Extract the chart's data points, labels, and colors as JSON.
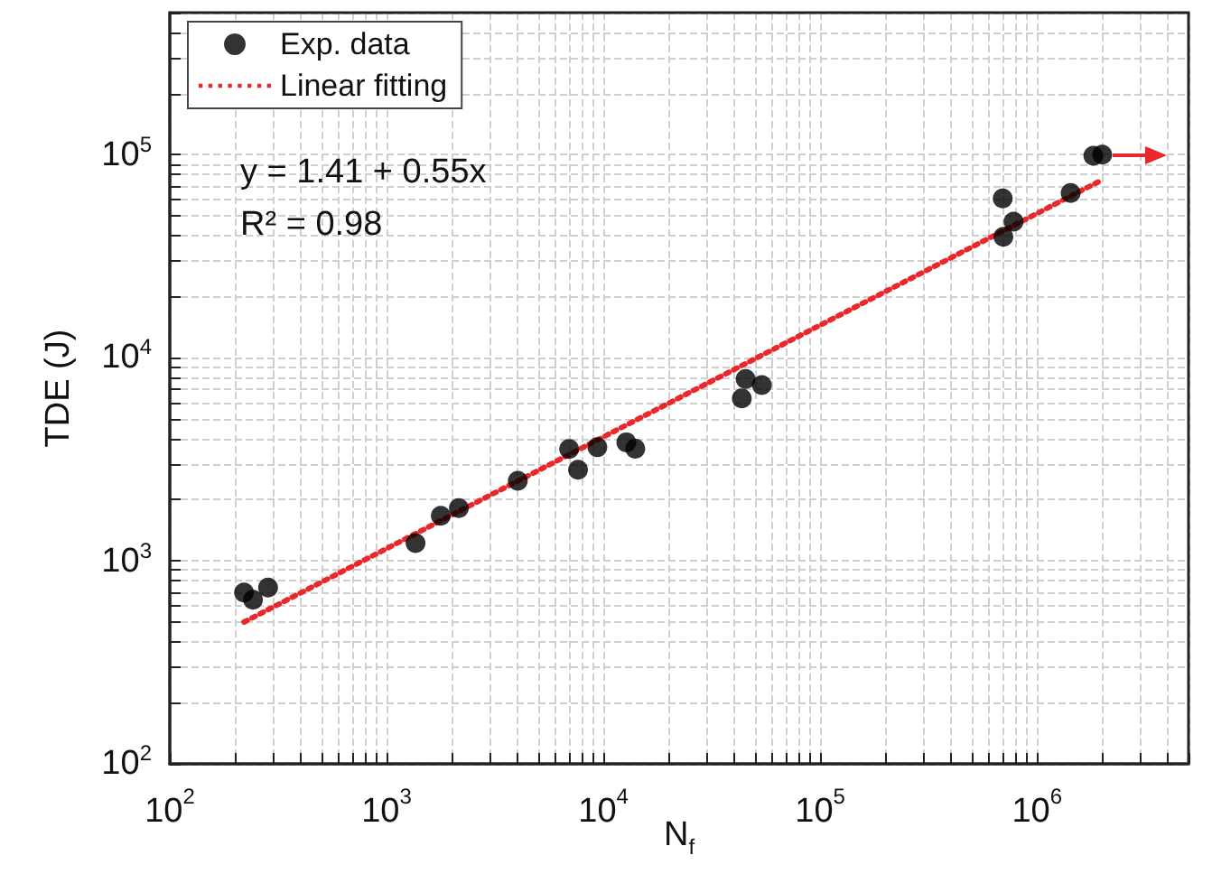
{
  "chart_data": {
    "type": "scatter",
    "xlabel": "N$_{f}$",
    "ylabel": "TDE (J)",
    "log": "xy",
    "grid": true,
    "legend": "top left",
    "marker": "circle",
    "xlim": [
      100,
      5000000
    ],
    "ylim": [
      100,
      500000
    ],
    "xticks": [
      {
        "value": 100,
        "label": "10$^{2}$"
      },
      {
        "value": 1000,
        "label": "10$^{3}$"
      },
      {
        "value": 10000,
        "label": "10$^{4}$"
      },
      {
        "value": 100000,
        "label": "10$^{5}$"
      },
      {
        "value": 1000000,
        "label": "10$^{6}$"
      }
    ],
    "yticks": [
      {
        "value": 100,
        "label": "10$^{2}$"
      },
      {
        "value": 1000,
        "label": "10$^{3}$"
      },
      {
        "value": 10000,
        "label": "10$^{4}$"
      },
      {
        "value": 100000,
        "label": "10$^{5}$"
      }
    ],
    "annotations": [
      "y = 1.41 + 0.55x",
      "R² = 0.98"
    ],
    "series": [
      {
        "name": "Exp. data",
        "color": "#000000",
        "x": [
          220,
          242,
          284,
          1360,
          1778,
          2154,
          4030,
          6950,
          7640,
          9380,
          12760,
          14030,
          45300,
          43500,
          53800,
          695000,
          700000,
          780000,
          1430000,
          1820000,
          2000000
        ],
        "values": [
          698,
          643,
          738,
          1222,
          1667,
          1816,
          2477,
          3550,
          2805,
          3622,
          3830,
          3565,
          7860,
          6300,
          7330,
          60800,
          39400,
          46700,
          64700,
          98600,
          100000
        ]
      },
      {
        "name": "Linear fitting",
        "type": "line",
        "color": "#e8282b",
        "line_style": "dotted",
        "marker": "none",
        "x": [
          220,
          2000000
        ],
        "values": [
          499,
          75100
        ]
      }
    ]
  }
}
